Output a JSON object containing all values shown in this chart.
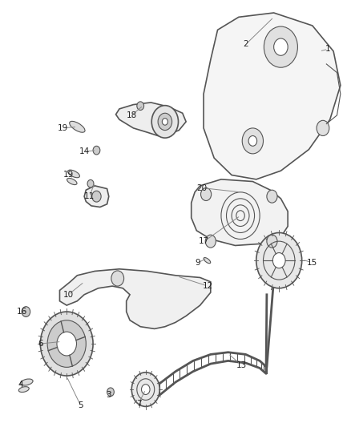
{
  "bg_color": "#ffffff",
  "line_color": "#555555",
  "text_color": "#222222",
  "fig_width": 4.38,
  "fig_height": 5.33,
  "dpi": 100
}
